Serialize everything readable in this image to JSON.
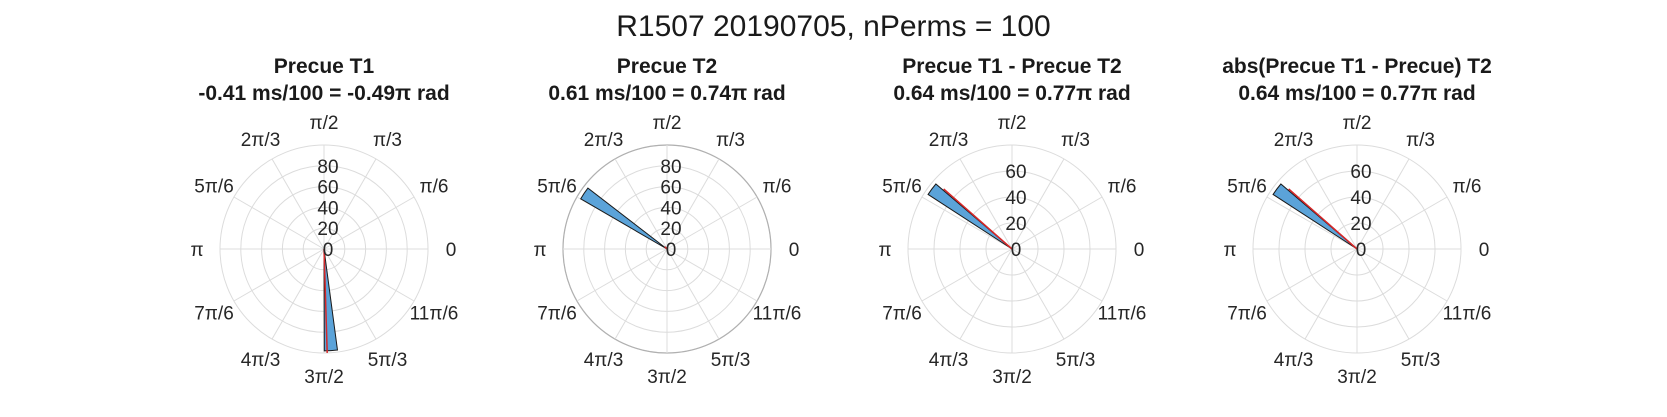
{
  "figure": {
    "title": "R1507 20190705, nPerms = 100"
  },
  "style": {
    "bar_fill": "#5ba3d9",
    "bar_edge": "#1a1a1a",
    "mean_line": "#d62728",
    "grid": "#dcdcdc",
    "outer_circle": "#b0b0b0"
  },
  "theta_tick_labels": [
    "0",
    "π/6",
    "π/3",
    "π/2",
    "2π/3",
    "5π/6",
    "π",
    "7π/6",
    "4π/3",
    "3π/2",
    "5π/3",
    "11π/6"
  ],
  "chart_data": [
    {
      "type": "polar-histogram",
      "title": "Precue T1",
      "subtitle": "-0.41 ms/100 = -0.49π rad",
      "rlim": [
        0,
        100
      ],
      "r_ticks": [
        0,
        20,
        40,
        60,
        80
      ],
      "bars": [
        {
          "theta_center": 4.78,
          "width": 0.13,
          "count": 98
        }
      ],
      "mean_theta": -1.54,
      "mean_length": 100
    },
    {
      "type": "polar-histogram",
      "title": "Precue T2",
      "subtitle": "0.61 ms/100 = 0.74π rad",
      "rlim": [
        0,
        100
      ],
      "r_ticks": [
        0,
        20,
        40,
        60,
        80
      ],
      "bars": [
        {
          "theta_center": 2.55,
          "width": 0.13,
          "count": 96
        }
      ],
      "mean_theta": 2.32,
      "mean_length": 3
    },
    {
      "type": "polar-histogram",
      "title": "Precue T1 - Precue T2",
      "subtitle": "0.64 ms/100 = 0.77π rad",
      "rlim": [
        0,
        80
      ],
      "r_ticks": [
        0,
        20,
        40,
        60
      ],
      "bars": [
        {
          "theta_center": 2.5,
          "width": 0.13,
          "count": 77
        }
      ],
      "mean_theta": 2.42,
      "mean_length": 70
    },
    {
      "type": "polar-histogram",
      "title": "abs(Precue T1 - Precue) T2",
      "subtitle": "0.64 ms/100 = 0.77π rad",
      "rlim": [
        0,
        80
      ],
      "r_ticks": [
        0,
        20,
        40,
        60
      ],
      "bars": [
        {
          "theta_center": 2.5,
          "width": 0.13,
          "count": 77
        }
      ],
      "mean_theta": 2.42,
      "mean_length": 70
    }
  ]
}
